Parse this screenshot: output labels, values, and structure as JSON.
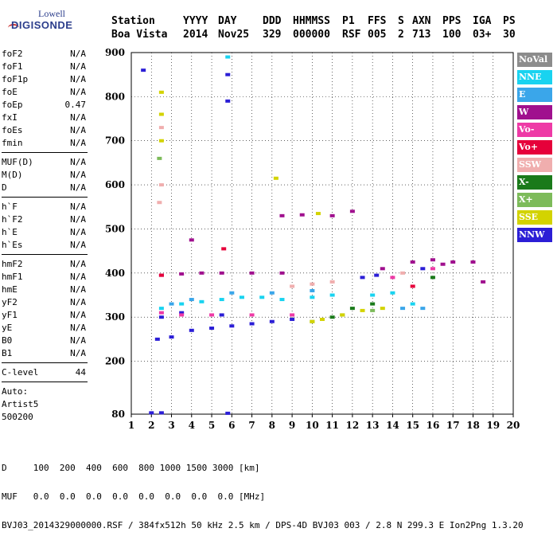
{
  "logo": {
    "top": "Lowell",
    "bottom": "DIGISONDE"
  },
  "header": {
    "labels": [
      "Station",
      "YYYY",
      "DAY",
      "DDD",
      "HHMMSS",
      "P1",
      "FFS",
      "S",
      "AXN",
      "PPS",
      "IGA",
      "PS"
    ],
    "values": [
      "Boa Vista",
      "2014",
      "Nov25",
      "329",
      "000000",
      "RSF",
      "005",
      "2",
      "713",
      "100",
      "03+",
      "30"
    ]
  },
  "params": {
    "group1": [
      {
        "name": "foF2",
        "value": "N/A"
      },
      {
        "name": "foF1",
        "value": "N/A"
      },
      {
        "name": "foF1p",
        "value": "N/A"
      },
      {
        "name": "foE",
        "value": "N/A"
      },
      {
        "name": "foEp",
        "value": "0.47"
      },
      {
        "name": "fxI",
        "value": "N/A"
      },
      {
        "name": "foEs",
        "value": "N/A"
      },
      {
        "name": "fmin",
        "value": "N/A"
      }
    ],
    "group2": [
      {
        "name": "MUF(D)",
        "value": "N/A"
      },
      {
        "name": "M(D)",
        "value": "N/A"
      },
      {
        "name": "D",
        "value": "N/A"
      }
    ],
    "group3": [
      {
        "name": "h`F",
        "value": "N/A"
      },
      {
        "name": "h`F2",
        "value": "N/A"
      },
      {
        "name": "h`E",
        "value": "N/A"
      },
      {
        "name": "h`Es",
        "value": "N/A"
      }
    ],
    "group4": [
      {
        "name": "hmF2",
        "value": "N/A"
      },
      {
        "name": "hmF1",
        "value": "N/A"
      },
      {
        "name": "hmE",
        "value": "N/A"
      },
      {
        "name": "yF2",
        "value": "N/A"
      },
      {
        "name": "yF1",
        "value": "N/A"
      },
      {
        "name": "yE",
        "value": "N/A"
      },
      {
        "name": "B0",
        "value": "N/A"
      },
      {
        "name": "B1",
        "value": "N/A"
      }
    ],
    "clevel": {
      "name": "C-level",
      "value": "44"
    },
    "auto": [
      "Auto:",
      "Artist5",
      "500200"
    ]
  },
  "legend": [
    {
      "label": "NoVal",
      "color": "#8c8c8c"
    },
    {
      "label": "NNE",
      "color": "#19d3f0"
    },
    {
      "label": "E",
      "color": "#3aa6ea"
    },
    {
      "label": "W",
      "color": "#a0108e"
    },
    {
      "label": "Vo-",
      "color": "#ee3aa6"
    },
    {
      "label": "Vo+",
      "color": "#e6003a"
    },
    {
      "label": "SSW",
      "color": "#f0aeae"
    },
    {
      "label": "X-",
      "color": "#1a7a1a"
    },
    {
      "label": "X+",
      "color": "#7dbb5a"
    },
    {
      "label": "SSE",
      "color": "#d3d300"
    },
    {
      "label": "NNW",
      "color": "#2b1ed6"
    }
  ],
  "chart_data": {
    "type": "scatter",
    "xlim": [
      1,
      20
    ],
    "ylim": [
      80,
      900
    ],
    "xticks": [
      1,
      2,
      3,
      4,
      5,
      6,
      7,
      8,
      9,
      10,
      11,
      12,
      13,
      14,
      15,
      16,
      17,
      18,
      19,
      20
    ],
    "yticks": [
      80,
      200,
      300,
      400,
      500,
      600,
      700,
      800,
      900
    ],
    "grid": true,
    "legend_placement": "right",
    "series": [
      {
        "name": "NNW",
        "color": "#2b1ed6",
        "points": [
          [
            2.3,
            250
          ],
          [
            3,
            255
          ],
          [
            4,
            270
          ],
          [
            5,
            275
          ],
          [
            6,
            280
          ],
          [
            7,
            285
          ],
          [
            8,
            290
          ],
          [
            9,
            295
          ],
          [
            2.5,
            300
          ],
          [
            3.5,
            310
          ],
          [
            5.5,
            305
          ],
          [
            12.5,
            390
          ],
          [
            13.2,
            395
          ],
          [
            15.5,
            410
          ],
          [
            5.8,
            850
          ],
          [
            5.8,
            790
          ],
          [
            1.6,
            860
          ],
          [
            2,
            83
          ],
          [
            2.5,
            83
          ],
          [
            5.8,
            82
          ]
        ]
      },
      {
        "name": "NNE",
        "color": "#19d3f0",
        "points": [
          [
            2.5,
            320
          ],
          [
            3.5,
            330
          ],
          [
            4.5,
            335
          ],
          [
            5.5,
            340
          ],
          [
            6.5,
            345
          ],
          [
            7.5,
            345
          ],
          [
            8.5,
            340
          ],
          [
            10,
            345
          ],
          [
            11,
            350
          ],
          [
            13,
            350
          ],
          [
            14,
            355
          ],
          [
            15,
            330
          ],
          [
            5.8,
            890
          ]
        ]
      },
      {
        "name": "E",
        "color": "#3aa6ea",
        "points": [
          [
            3,
            330
          ],
          [
            4,
            340
          ],
          [
            6,
            355
          ],
          [
            8,
            355
          ],
          [
            10,
            360
          ],
          [
            14.5,
            320
          ],
          [
            15.5,
            320
          ]
        ]
      },
      {
        "name": "W",
        "color": "#a0108e",
        "points": [
          [
            2.5,
            395
          ],
          [
            3.5,
            398
          ],
          [
            4.5,
            400
          ],
          [
            5.5,
            400
          ],
          [
            7,
            400
          ],
          [
            8.5,
            400
          ],
          [
            4,
            475
          ],
          [
            8.5,
            530
          ],
          [
            9.5,
            532
          ],
          [
            11,
            530
          ],
          [
            12,
            540
          ],
          [
            13.5,
            410
          ],
          [
            15,
            425
          ],
          [
            16,
            430
          ],
          [
            16.5,
            420
          ],
          [
            17,
            425
          ],
          [
            18,
            425
          ],
          [
            18.5,
            380
          ]
        ]
      },
      {
        "name": "Vo-",
        "color": "#ee3aa6",
        "points": [
          [
            2.5,
            310
          ],
          [
            3.5,
            305
          ],
          [
            5,
            305
          ],
          [
            7,
            305
          ],
          [
            9,
            305
          ],
          [
            14,
            390
          ],
          [
            16,
            410
          ]
        ]
      },
      {
        "name": "Vo+",
        "color": "#e6003a",
        "points": [
          [
            2.5,
            395
          ],
          [
            5.6,
            455
          ],
          [
            15,
            370
          ]
        ]
      },
      {
        "name": "SSW",
        "color": "#f0aeae",
        "points": [
          [
            2.5,
            730
          ],
          [
            2.5,
            600
          ],
          [
            2.4,
            560
          ],
          [
            9,
            370
          ],
          [
            10,
            375
          ],
          [
            11,
            380
          ],
          [
            14.5,
            400
          ]
        ]
      },
      {
        "name": "X-",
        "color": "#1a7a1a",
        "points": [
          [
            11,
            300
          ],
          [
            12,
            320
          ],
          [
            13,
            330
          ],
          [
            16,
            390
          ]
        ]
      },
      {
        "name": "X+",
        "color": "#7dbb5a",
        "points": [
          [
            10,
            290
          ],
          [
            11.5,
            305
          ],
          [
            13,
            315
          ],
          [
            2.4,
            660
          ]
        ]
      },
      {
        "name": "SSE",
        "color": "#d3d300",
        "points": [
          [
            2.5,
            810
          ],
          [
            2.5,
            760
          ],
          [
            2.5,
            700
          ],
          [
            10,
            290
          ],
          [
            10.5,
            295
          ],
          [
            11.5,
            305
          ],
          [
            12.5,
            315
          ],
          [
            13.5,
            320
          ],
          [
            8.2,
            615
          ],
          [
            10.3,
            535
          ]
        ]
      }
    ]
  },
  "footer": {
    "line1": "D     100  200  400  600  800 1000 1500 3000 [km]",
    "line2": "MUF   0.0  0.0  0.0  0.0  0.0  0.0  0.0  0.0 [MHz]",
    "line3": "BVJ03_2014329000000.RSF / 384fx512h 50 kHz 2.5 km / DPS-4D BVJ03 003 / 2.8 N 299.3 E Ion2Png 1.3.20"
  }
}
